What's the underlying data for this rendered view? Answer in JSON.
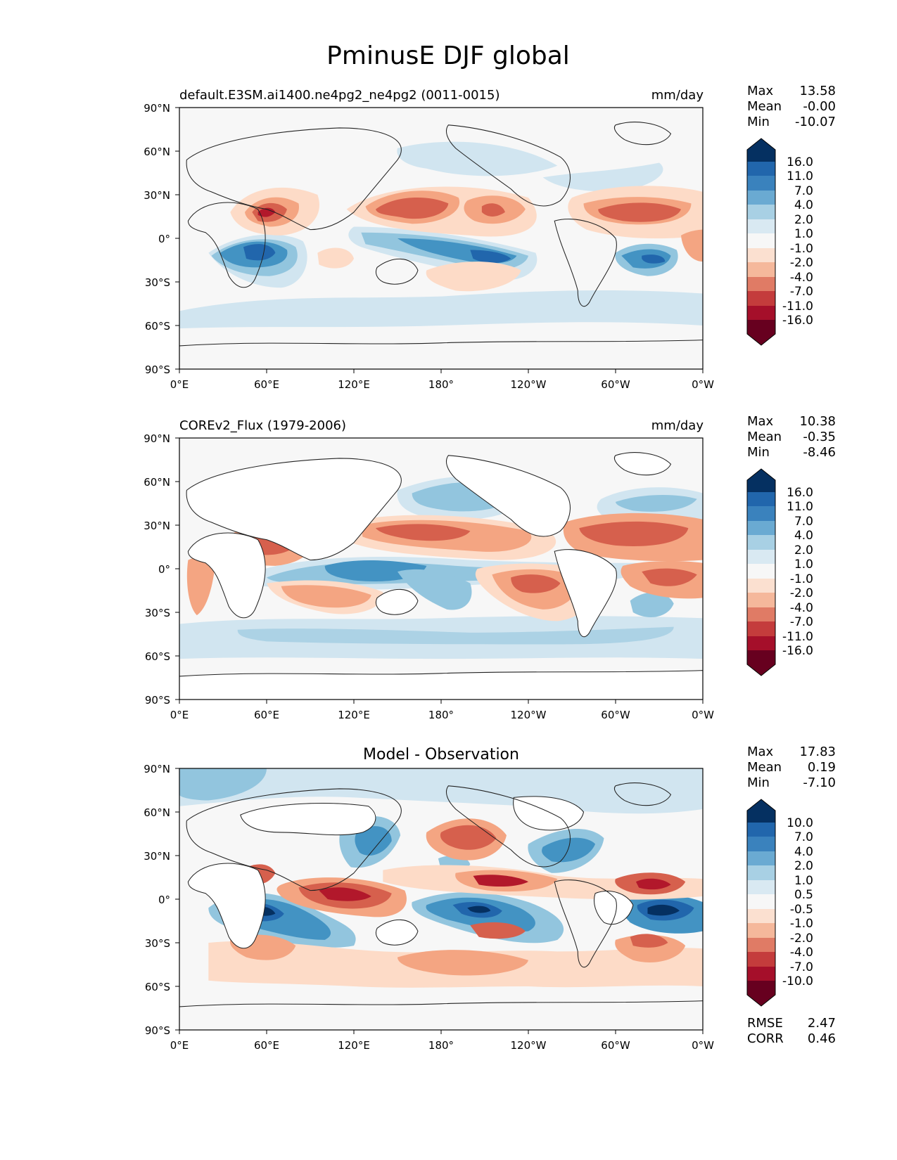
{
  "title": "PminusE DJF global",
  "axes": {
    "lat_ticks": [
      "90°N",
      "60°N",
      "30°N",
      "0°",
      "30°S",
      "60°S",
      "90°S"
    ],
    "lon_ticks": [
      "0°E",
      "60°E",
      "120°E",
      "180°",
      "120°W",
      "60°W",
      "0°W"
    ]
  },
  "colors": {
    "blue_dark": "#053061",
    "blue": "#2166ac",
    "blue_mid": "#4393c3",
    "blue_light": "#92c5de",
    "blue_pale": "#d1e5f0",
    "neutral": "#f7f7f7",
    "red_pale": "#fddbc7",
    "red_light": "#f4a582",
    "red_mid": "#d6604d",
    "red": "#b2182b",
    "red_dark": "#67001f",
    "land": "#ffffff",
    "coast": "#222222"
  },
  "panels": [
    {
      "name": "test",
      "left_title": "default.E3SM.ai1400.ne4pg2_ne4pg2 (0011-0015)",
      "center_title": "",
      "units": "mm/day",
      "stats": [
        {
          "label": "Max",
          "value": "13.58"
        },
        {
          "label": "Mean",
          "value": "-0.00"
        },
        {
          "label": "Min",
          "value": "-10.07"
        }
      ],
      "colorbar_labels": [
        "16.0",
        "11.0",
        "7.0",
        "4.0",
        "2.0",
        "1.0",
        "-1.0",
        "-2.0",
        "-4.0",
        "-7.0",
        "-11.0",
        "-16.0"
      ]
    },
    {
      "name": "reference",
      "left_title": "COREv2_Flux (1979-2006)",
      "center_title": "",
      "units": "mm/day",
      "stats": [
        {
          "label": "Max",
          "value": "10.38"
        },
        {
          "label": "Mean",
          "value": "-0.35"
        },
        {
          "label": "Min",
          "value": "-8.46"
        }
      ],
      "colorbar_labels": [
        "16.0",
        "11.0",
        "7.0",
        "4.0",
        "2.0",
        "1.0",
        "-1.0",
        "-2.0",
        "-4.0",
        "-7.0",
        "-11.0",
        "-16.0"
      ]
    },
    {
      "name": "difference",
      "left_title": "",
      "center_title": "Model - Observation",
      "units": "",
      "stats": [
        {
          "label": "Max",
          "value": "17.83"
        },
        {
          "label": "Mean",
          "value": "0.19"
        },
        {
          "label": "Min",
          "value": "-7.10"
        }
      ],
      "bottom_stats": [
        {
          "label": "RMSE",
          "value": "2.47"
        },
        {
          "label": "CORR",
          "value": "0.46"
        }
      ],
      "colorbar_labels": [
        "10.0",
        "7.0",
        "4.0",
        "2.0",
        "1.0",
        "0.5",
        "-0.5",
        "-1.0",
        "-2.0",
        "-4.0",
        "-7.0",
        "-10.0"
      ]
    }
  ]
}
